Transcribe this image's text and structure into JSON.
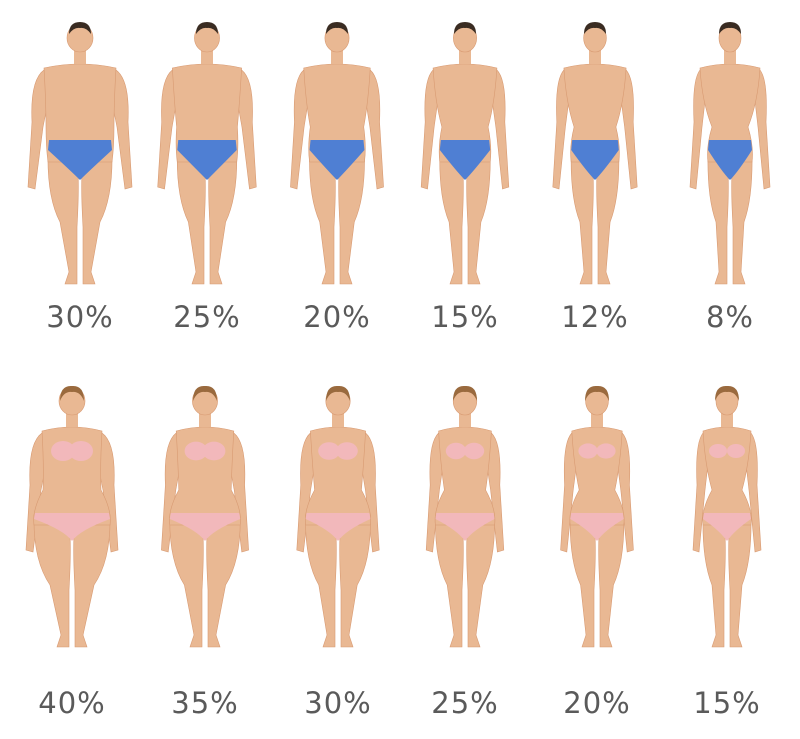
{
  "rows": [
    {
      "group": "men",
      "labels": [
        "30%",
        "25%",
        "20%",
        "15%",
        "12%",
        "8%"
      ],
      "underwear_color": "#4f7fd3"
    },
    {
      "group": "women",
      "labels": [
        "40%",
        "35%",
        "30%",
        "25%",
        "20%",
        "15%"
      ],
      "underwear_color": "#f2b8bb"
    }
  ],
  "colors": {
    "skin": "#e9b893",
    "skin_shade": "#d89a72",
    "hair_men": "#3a2c22",
    "hair_women": "#9a6a3e",
    "label": "#5a5a5a",
    "background": "#ffffff"
  }
}
